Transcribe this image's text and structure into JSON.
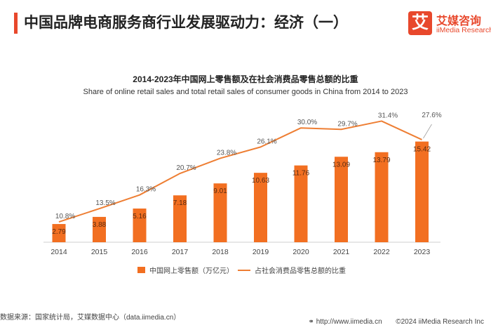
{
  "header": {
    "title": "中国品牌电商服务商行业发展驱动力：经济（一）"
  },
  "logo": {
    "mark": "艾",
    "name_cn": "艾媒咨询",
    "name_en": "iiMedia Research"
  },
  "colors": {
    "accent": "#e8482c",
    "bar": "#f26f21",
    "line": "#ee7e33"
  },
  "chart_data": {
    "type": "bar",
    "title": "2014-2023年中国网上零售额及在社会消费品零售总额的比重",
    "subtitle": "Share of online retail sales and total retail sales of consumer goods in China  from 2014 to 2023",
    "categories": [
      "2014",
      "2015",
      "2016",
      "2017",
      "2018",
      "2019",
      "2020",
      "2021",
      "2022",
      "2023"
    ],
    "series": [
      {
        "name": "中国网上零售额（万亿元）",
        "type": "bar",
        "values": [
          2.79,
          3.88,
          5.16,
          7.18,
          9.01,
          10.63,
          11.76,
          13.09,
          13.79,
          15.42
        ],
        "labels": [
          "2.79",
          "3.88",
          "5.16",
          "7.18",
          "9.01",
          "10.63",
          "11.76",
          "13.09",
          "13.79",
          "15.42"
        ]
      },
      {
        "name": "占社会消费品零售总额的比重",
        "type": "line",
        "values": [
          10.8,
          13.5,
          16.3,
          20.7,
          23.8,
          26.1,
          30.0,
          29.7,
          31.4,
          27.6
        ],
        "labels": [
          "10.8%",
          "13.5%",
          "16.3%",
          "20.7%",
          "23.8%",
          "26.1%",
          "30.0%",
          "29.7%",
          "31.4%",
          "27.6%"
        ]
      }
    ],
    "grid": false,
    "legend": "bottom"
  },
  "footer": {
    "source": "数据来源：国家统计局，艾媒数据中心（data.iimedia.cn）",
    "url": "http://www.iimedia.cn",
    "copyright": "©2024  iiMedia Research  Inc"
  }
}
